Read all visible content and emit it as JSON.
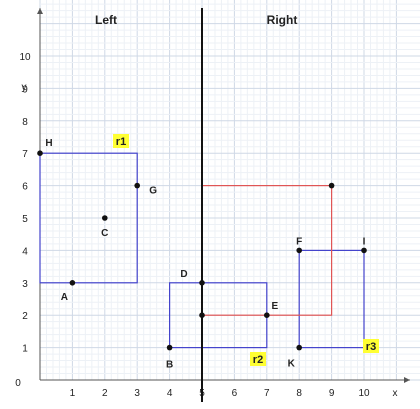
{
  "chart_data": {
    "type": "diagram",
    "xlabel": "x",
    "ylabel": "y",
    "xlim": [
      0,
      11
    ],
    "ylim": [
      0,
      11
    ],
    "x_ticks": [
      "1",
      "2",
      "3",
      "4",
      "5",
      "6",
      "7",
      "8",
      "9",
      "10"
    ],
    "y_ticks": [
      "1",
      "2",
      "3",
      "4",
      "5",
      "6",
      "7",
      "8",
      "9",
      "10"
    ],
    "origin_label": "0",
    "grid": true,
    "divider_x": 5,
    "sides": {
      "left": "Left",
      "right": "Right"
    },
    "rectangles": [
      {
        "label": "r1",
        "x1": 0,
        "y1": 3,
        "x2": 3,
        "y2": 7,
        "color": "#4444cc"
      },
      {
        "label": "r2",
        "x1": 4,
        "y1": 1,
        "x2": 7,
        "y2": 3,
        "color": "#4444cc"
      },
      {
        "label": "r3",
        "x1": 8,
        "y1": 1,
        "x2": 10,
        "y2": 4,
        "color": "#4444cc"
      },
      {
        "label": "",
        "x1": 5,
        "y1": 2,
        "x2": 9,
        "y2": 6,
        "color": "#e05555"
      }
    ],
    "points": [
      {
        "label": "H",
        "x": 0,
        "y": 7
      },
      {
        "label": "A",
        "x": 1,
        "y": 3
      },
      {
        "label": "C",
        "x": 2,
        "y": 5
      },
      {
        "label": "G",
        "x": 3,
        "y": 6
      },
      {
        "label": "D",
        "x": 5,
        "y": 3
      },
      {
        "label": "B",
        "x": 4,
        "y": 1
      },
      {
        "label": "E",
        "x": 7,
        "y": 2
      },
      {
        "label": "F",
        "x": 8,
        "y": 4
      },
      {
        "label": "I",
        "x": 10,
        "y": 4
      },
      {
        "label": "K",
        "x": 8,
        "y": 1
      },
      {
        "label": "",
        "x": 9,
        "y": 6
      },
      {
        "label": "",
        "x": 5,
        "y": 2
      }
    ],
    "highlight_color": "#ffff33"
  }
}
